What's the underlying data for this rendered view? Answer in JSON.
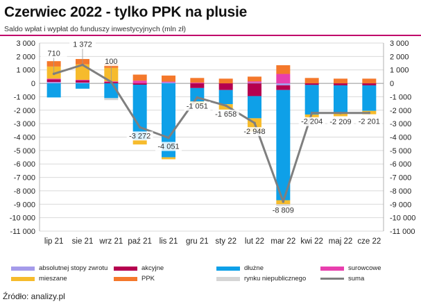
{
  "title": "Czerwiec 2022 - tylko PPK na plusie",
  "subtitle": "Saldo wpłat i wypłat do funduszy inwestycyjnych (mln zł)",
  "source": "Źródło: analizy.pl",
  "colors": {
    "accent_rule": "#c0006a",
    "grid": "#d9d9d9",
    "line": "#7f7f7f"
  },
  "chart_data": {
    "type": "bar",
    "stacked": true,
    "categories": [
      "lip 21",
      "sie 21",
      "wrz 21",
      "paź 21",
      "lis 21",
      "gru 21",
      "sty 22",
      "lut 22",
      "mar 22",
      "kwi 22",
      "maj 22",
      "cze 22"
    ],
    "ylim": [
      -11000,
      3000
    ],
    "yticks": [
      3000,
      2000,
      1000,
      0,
      -1000,
      -2000,
      -3000,
      -4000,
      -5000,
      -6000,
      -7000,
      -8000,
      -9000,
      -10000,
      -11000
    ],
    "ytick_labels": [
      "3 000",
      "2 000",
      "1 000",
      "0",
      "-1 000",
      "-2 000",
      "-3 000",
      "-4 000",
      "-5 000",
      "-6 000",
      "-7 000",
      "-8 000",
      "-9 000",
      "-10 000",
      "-11 000"
    ],
    "series": [
      {
        "name": "absolutnej stopy zwrotu",
        "color": "#a59bea",
        "values": [
          100,
          60,
          0,
          0,
          80,
          0,
          0,
          50,
          -150,
          0,
          0,
          0
        ]
      },
      {
        "name": "akcyjne",
        "color": "#b5004f",
        "values": [
          200,
          150,
          100,
          -100,
          0,
          -350,
          -500,
          -950,
          -350,
          -120,
          -150,
          -150
        ]
      },
      {
        "name": "dłużne",
        "color": "#0ea0e8",
        "values": [
          -1050,
          -400,
          -1100,
          -4100,
          -5500,
          -1000,
          -1050,
          -1650,
          -8200,
          -2200,
          -2000,
          -1900
        ]
      },
      {
        "name": "surowcowe",
        "color": "#e83fae",
        "values": [
          50,
          50,
          50,
          200,
          50,
          50,
          0,
          100,
          700,
          0,
          0,
          0
        ]
      },
      {
        "name": "mieszane",
        "color": "#f6bb2c",
        "values": [
          900,
          1150,
          1000,
          -350,
          -150,
          -200,
          -400,
          -1000,
          -300,
          -250,
          -300,
          -250
        ]
      },
      {
        "name": "PPK",
        "color": "#f4782b",
        "values": [
          400,
          400,
          300,
          450,
          450,
          350,
          350,
          350,
          650,
          400,
          350,
          350
        ]
      },
      {
        "name": "rynku niepublicznego",
        "color": "#d5d5d5",
        "values": [
          0,
          0,
          -150,
          0,
          0,
          0,
          0,
          0,
          -300,
          0,
          0,
          0
        ]
      }
    ],
    "sum": {
      "name": "suma",
      "color": "#7f7f7f",
      "values": [
        710,
        1372,
        100,
        -3272,
        -4051,
        -1051,
        -1658,
        -2948,
        -8809,
        -2204,
        -2209,
        -2201
      ]
    },
    "data_labels": [
      "710",
      "1 372",
      "100",
      "-3 272",
      "-4 051",
      "-1 051",
      "-1 658",
      "-2 948",
      "-8 809",
      "-2 204",
      "-2 209",
      "-2 201"
    ],
    "legend_position": "bottom",
    "grid": true
  },
  "legend": [
    {
      "label": "absolutnej stopy zwrotu",
      "color": "#a59bea",
      "kind": "bar"
    },
    {
      "label": "akcyjne",
      "color": "#b5004f",
      "kind": "bar"
    },
    {
      "label": "dłużne",
      "color": "#0ea0e8",
      "kind": "bar"
    },
    {
      "label": "surowcowe",
      "color": "#e83fae",
      "kind": "bar"
    },
    {
      "label": "mieszane",
      "color": "#f6bb2c",
      "kind": "bar"
    },
    {
      "label": "PPK",
      "color": "#f4782b",
      "kind": "bar"
    },
    {
      "label": "rynku niepublicznego",
      "color": "#d5d5d5",
      "kind": "bar"
    },
    {
      "label": "suma",
      "color": "#7f7f7f",
      "kind": "line"
    }
  ]
}
